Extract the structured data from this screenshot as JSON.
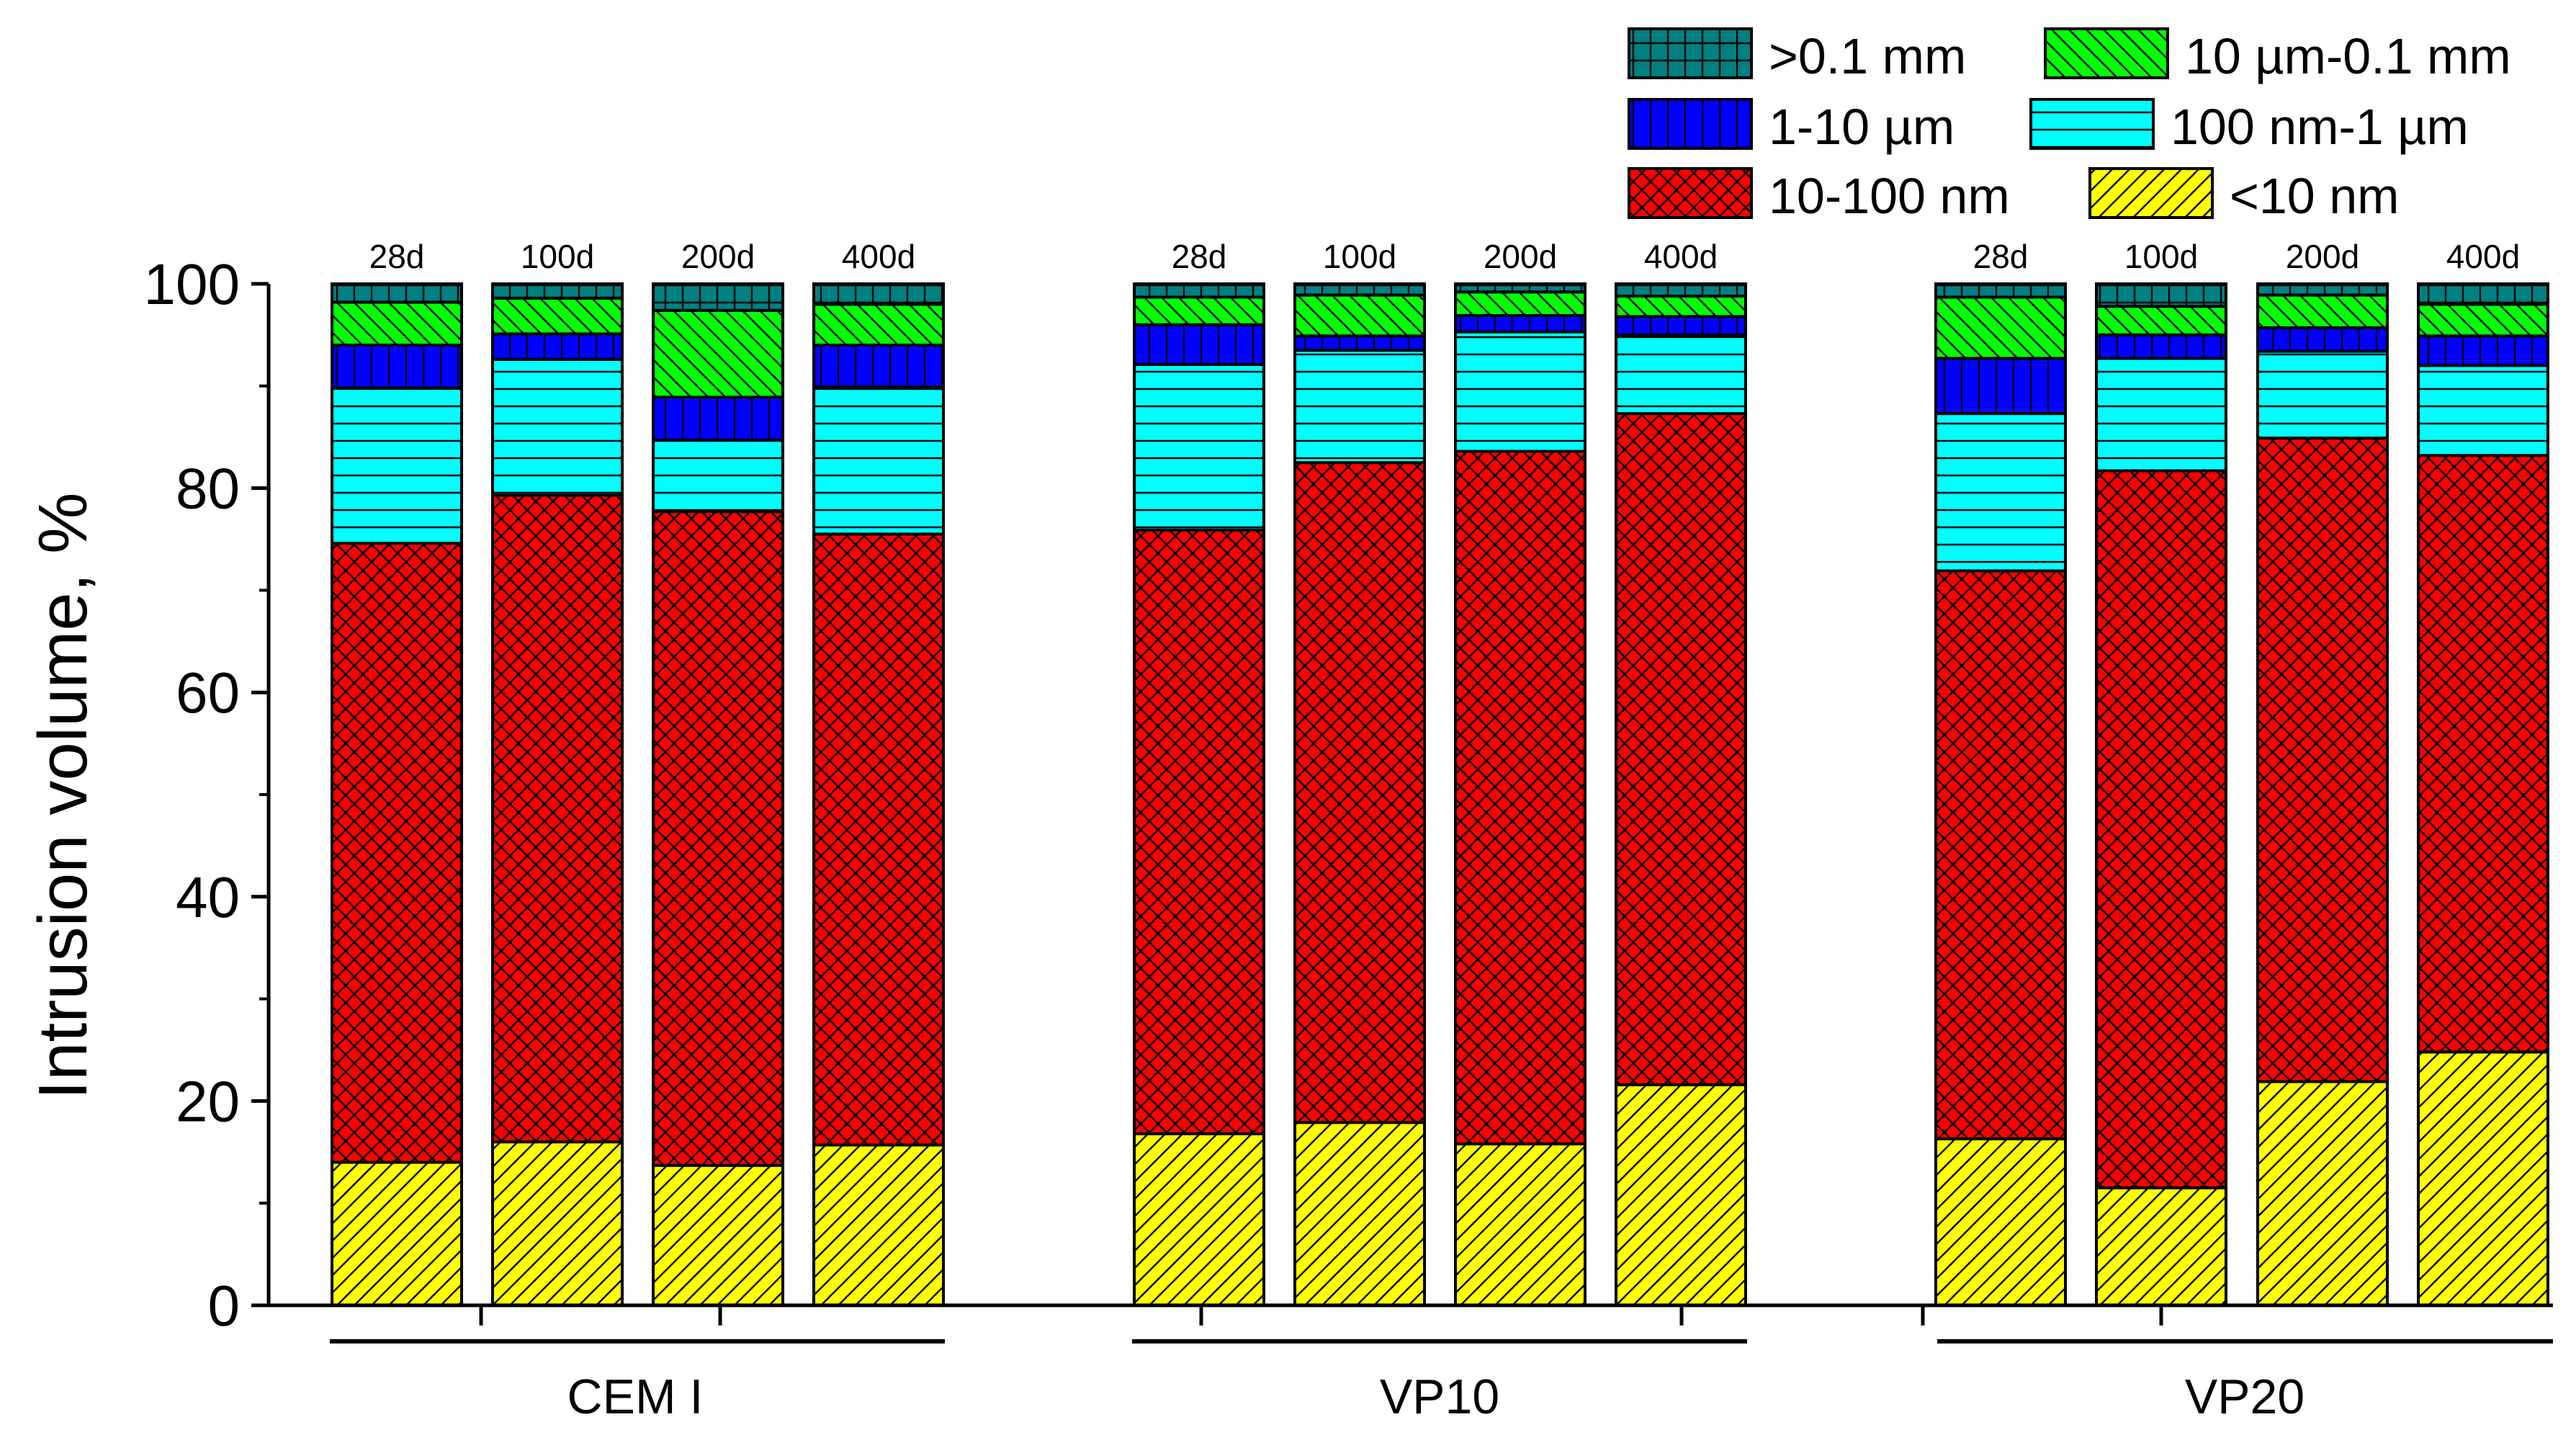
{
  "chart_data": {
    "type": "bar",
    "stacked": true,
    "ylabel": "Intrusion volume, %",
    "ylim": [
      0,
      100
    ],
    "yticks": [
      "0",
      "20",
      "40",
      "60",
      "80",
      "100"
    ],
    "legend_position": "top-right",
    "groups": [
      {
        "name": "CEM I",
        "bars": [
          "28d",
          "100d",
          "200d",
          "400d"
        ]
      },
      {
        "name": "VP10",
        "bars": [
          "28d",
          "100d",
          "200d",
          "400d"
        ]
      },
      {
        "name": "VP20",
        "bars": [
          "28d",
          "100d",
          "200d",
          "400d"
        ]
      }
    ],
    "categories": [
      "28d",
      "100d",
      "200d",
      "400d",
      "28d",
      "100d",
      "200d",
      "400d",
      "28d",
      "100d",
      "200d",
      "400d"
    ],
    "series": [
      {
        "name": "<10 nm",
        "color": "#ffff00",
        "pattern": "diag-right",
        "values": [
          14,
          16,
          13.7,
          15.7,
          16.8,
          17.9,
          15.8,
          21.6,
          16.3,
          11.5,
          21.9,
          24.8
        ]
      },
      {
        "name": "10-100 nm",
        "color": "#ff0000",
        "pattern": "crosshatch",
        "values": [
          60.6,
          63.3,
          64.0,
          59.8,
          59.1,
          64.6,
          67.8,
          65.7,
          55.6,
          70.2,
          63.0,
          58.4
        ]
      },
      {
        "name": "100 nm-1 µm",
        "color": "#00ffff",
        "pattern": "horizontal",
        "values": [
          15.2,
          13.3,
          7.0,
          14.4,
          16.2,
          11.0,
          11.7,
          7.7,
          15.4,
          11.0,
          8.5,
          8.8
        ]
      },
      {
        "name": "1-10 µm",
        "color": "#0000ff",
        "pattern": "vertical",
        "values": [
          4.2,
          2.5,
          4.2,
          4.1,
          3.9,
          1.4,
          1.6,
          1.8,
          5.4,
          2.3,
          2.3,
          2.9
        ]
      },
      {
        "name": "10 µm-0.1 mm",
        "color": "#00ff00",
        "pattern": "diag-left",
        "values": [
          4.2,
          3.5,
          8.5,
          4.0,
          2.7,
          4.0,
          2.3,
          2.0,
          6.0,
          2.8,
          3.2,
          3.1
        ]
      },
      {
        "name": ">0.1 mm",
        "color": "#008080",
        "pattern": "grid",
        "values": [
          1.8,
          1.4,
          2.6,
          2.0,
          1.3,
          1.1,
          0.8,
          1.2,
          1.3,
          2.2,
          1.1,
          2.0
        ]
      }
    ]
  }
}
